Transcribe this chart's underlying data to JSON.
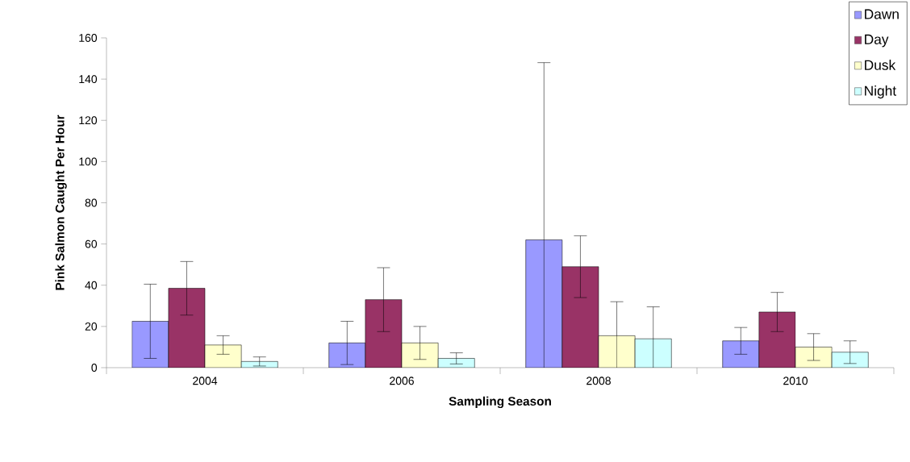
{
  "chart_data": {
    "type": "bar",
    "xlabel": "Sampling Season",
    "ylabel": "Pink Salmon Caught Per Hour",
    "categories": [
      "2004",
      "2006",
      "2008",
      "2010"
    ],
    "series": [
      {
        "name": "Dawn",
        "color": "#9999ff",
        "values": [
          22.5,
          12,
          62,
          13
        ],
        "errors": [
          18,
          10.5,
          86,
          6.5
        ]
      },
      {
        "name": "Day",
        "color": "#993366",
        "values": [
          38.5,
          33,
          49,
          27
        ],
        "errors": [
          13,
          15.5,
          15,
          9.5
        ]
      },
      {
        "name": "Dusk",
        "color": "#ffffcc",
        "values": [
          11,
          12,
          15.5,
          10
        ],
        "errors": [
          4.5,
          8,
          16.5,
          6.5
        ]
      },
      {
        "name": "Night",
        "color": "#ccffff",
        "values": [
          3,
          4.5,
          14,
          7.5
        ],
        "errors": [
          2.2,
          2.7,
          15.5,
          5.5
        ]
      }
    ],
    "ylim": [
      0,
      160
    ],
    "yticks": [
      0,
      20,
      40,
      60,
      80,
      100,
      120,
      140,
      160
    ],
    "legend": "top right",
    "grid": false
  }
}
